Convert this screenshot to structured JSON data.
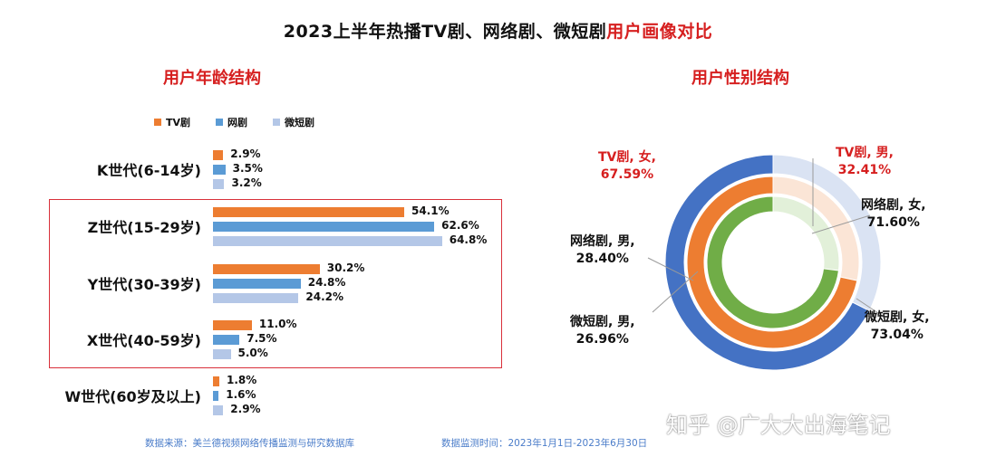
{
  "title": {
    "main": "2023上半年热播TV剧、网络剧、微短剧",
    "highlight": "用户画像对比"
  },
  "left_chart_title": "用户年龄结构",
  "right_chart_title": "用户性别结构",
  "legend": [
    {
      "name": "TV剧",
      "color": "#ed7d31"
    },
    {
      "name": "网剧",
      "color": "#5b9bd5"
    },
    {
      "name": "微短剧",
      "color": "#b4c7e7"
    }
  ],
  "source": {
    "text": "数据来源：美兰德视频网络传播监测与研究数据库",
    "period": "数据监测时间：2023年1月1日-2023年6月30日"
  },
  "watermark": "知乎 @广大大出海笔记",
  "chart_data": [
    {
      "type": "bar",
      "orientation": "horizontal",
      "title": "用户年龄结构",
      "categories": [
        "K世代(6-14岁)",
        "Z世代(15-29岁)",
        "Y世代(30-39岁)",
        "X世代(40-59岁)",
        "W世代(60岁及以上)"
      ],
      "series": [
        {
          "name": "TV剧",
          "values": [
            2.9,
            54.1,
            30.2,
            11.0,
            1.8
          ],
          "labels": [
            "2.9%",
            "54.1%",
            "30.2%",
            "11.0%",
            "1.8%"
          ]
        },
        {
          "name": "网剧",
          "values": [
            3.5,
            62.6,
            24.8,
            7.5,
            1.6
          ],
          "labels": [
            "3.5%",
            "62.6%",
            "24.8%",
            "7.5%",
            "1.6%"
          ]
        },
        {
          "name": "微短剧",
          "values": [
            3.2,
            64.8,
            24.2,
            5.0,
            2.9
          ],
          "labels": [
            "3.2%",
            "64.8%",
            "24.2%",
            "5.0%",
            "2.9%"
          ]
        }
      ],
      "highlighted_categories": [
        "Z世代(15-29岁)",
        "Y世代(30-39岁)",
        "X世代(40-59岁)"
      ]
    },
    {
      "type": "pie",
      "variant": "nested-donut",
      "title": "用户性别结构",
      "rings": [
        {
          "name": "TV剧",
          "ring": "outer",
          "slices": [
            {
              "label": "女",
              "value": 67.59
            },
            {
              "label": "男",
              "value": 32.41
            }
          ],
          "colors": [
            "#4472c4",
            "#dae3f3"
          ]
        },
        {
          "name": "网络剧",
          "ring": "middle",
          "slices": [
            {
              "label": "女",
              "value": 71.6
            },
            {
              "label": "男",
              "value": 28.4
            }
          ],
          "colors": [
            "#ed7d31",
            "#fbe5d6"
          ]
        },
        {
          "name": "微短剧",
          "ring": "inner",
          "slices": [
            {
              "label": "女",
              "value": 73.04
            },
            {
              "label": "男",
              "value": 26.96
            }
          ],
          "colors": [
            "#70ad47",
            "#e2f0d9"
          ]
        }
      ],
      "annotations": [
        {
          "line1": "TV剧, 女,",
          "line2": "67.59%",
          "color": "red"
        },
        {
          "line1": "TV剧, 男,",
          "line2": "32.41%",
          "color": "red"
        },
        {
          "line1": "网络剧, 女,",
          "line2": "71.60%",
          "color": "black"
        },
        {
          "line1": "网络剧, 男,",
          "line2": "28.40%",
          "color": "black"
        },
        {
          "line1": "微短剧, 女,",
          "line2": "73.04%",
          "color": "black"
        },
        {
          "line1": "微短剧, 男,",
          "line2": "26.96%",
          "color": "black"
        }
      ]
    }
  ]
}
